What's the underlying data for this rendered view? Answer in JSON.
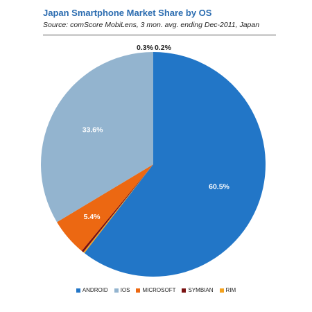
{
  "chart_data": {
    "type": "pie",
    "title": "Japan Smartphone Market Share by OS",
    "subtitle": "Source: comScore MobiLens, 3 mon. avg. ending Dec-2011, Japan",
    "legend_position": "bottom",
    "slices": [
      {
        "name": "ANDROID",
        "value": 60.5,
        "label": "60.5%",
        "color": "#2276c7",
        "label_color": "#ffffff"
      },
      {
        "name": "RIM",
        "value": 0.2,
        "label": "0.2%",
        "color": "#f4a21e",
        "label_color": "#222222"
      },
      {
        "name": "SYMBIAN",
        "value": 0.3,
        "label": "0.3%",
        "color": "#7a1111",
        "label_color": "#222222"
      },
      {
        "name": "MICROSOFT",
        "value": 5.4,
        "label": "5.4%",
        "color": "#ec6812",
        "label_color": "#ffffff"
      },
      {
        "name": "IOS",
        "value": 33.6,
        "label": "33.6%",
        "color": "#93b4cf",
        "label_color": "#ffffff"
      }
    ],
    "legend_order": [
      "ANDROID",
      "IOS",
      "MICROSOFT",
      "SYMBIAN",
      "RIM"
    ]
  }
}
